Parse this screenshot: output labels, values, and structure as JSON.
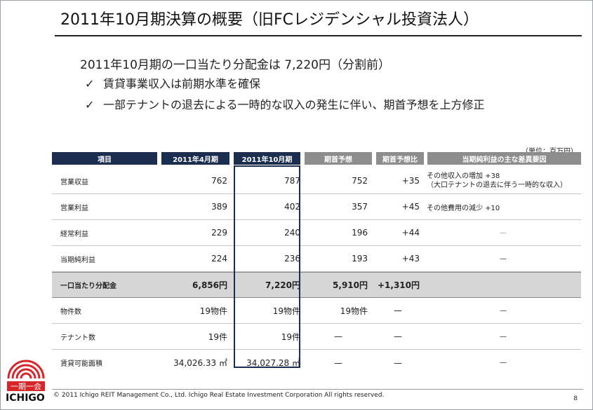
{
  "title": "2011年10月期決算の概要（旧FCレジデンシャル投資法人）",
  "headline": "2011年10月期の一口当たり分配金は 7,220円（分割前）",
  "bullets": [
    "賃貸事業収入は前期水準を確保",
    "一部テナントの退去による一時的な収入の発生に伴い、期首予想を上方修正"
  ],
  "check_mark": "✓",
  "unit": "（単位：百万円）",
  "columns": [
    "項目",
    "2011年4月期",
    "2011年10月期",
    "期首予想",
    "期首予想比",
    "当期純利益の主な差異要因"
  ],
  "rows": [
    {
      "label": "営業収益",
      "v1": "762",
      "v2": "787",
      "v3": "752",
      "v4": "+35",
      "note1": "その他収入の増加 +38",
      "note2": "（大口テナントの退去に伴う一時的な収入）"
    },
    {
      "label": "営業利益",
      "v1": "389",
      "v2": "402",
      "v3": "357",
      "v4": "+45",
      "note1": "その他費用の減少 +10",
      "note2": ""
    },
    {
      "label": "経常利益",
      "v1": "229",
      "v2": "240",
      "v3": "196",
      "v4": "+44",
      "note1": "—",
      "note2": ""
    },
    {
      "label": "当期純利益",
      "v1": "224",
      "v2": "236",
      "v3": "193",
      "v4": "+43",
      "note1": "—",
      "note2": ""
    },
    {
      "label": "一口当たり分配金",
      "v1": "6,856円",
      "v2": "7,220円",
      "v3": "5,910円",
      "v4": "+1,310円",
      "note1": "",
      "note2": ""
    },
    {
      "label": "物件数",
      "v1": "19物件",
      "v2": "19物件",
      "v3": "19物件",
      "v4": "—",
      "note1": "—",
      "note2": ""
    },
    {
      "label": "テナント数",
      "v1": "19件",
      "v2": "19件",
      "v3": "—",
      "v4": "—",
      "note1": "—",
      "note2": ""
    },
    {
      "label": "賃貸可能面積",
      "v1": "34,026.33 ㎡",
      "v2": "34,027.28 ㎡",
      "v3": "—",
      "v4": "—",
      "note1": "—",
      "note2": ""
    }
  ],
  "footer": "© 2011 Ichigo REIT Management Co., Ltd.  Ichigo Real Estate Investment Corporation  All rights reserved.",
  "page_number": "8",
  "logo": {
    "kanji": "一期一会",
    "text": "ICHIGO",
    "color": "#d7262a"
  }
}
